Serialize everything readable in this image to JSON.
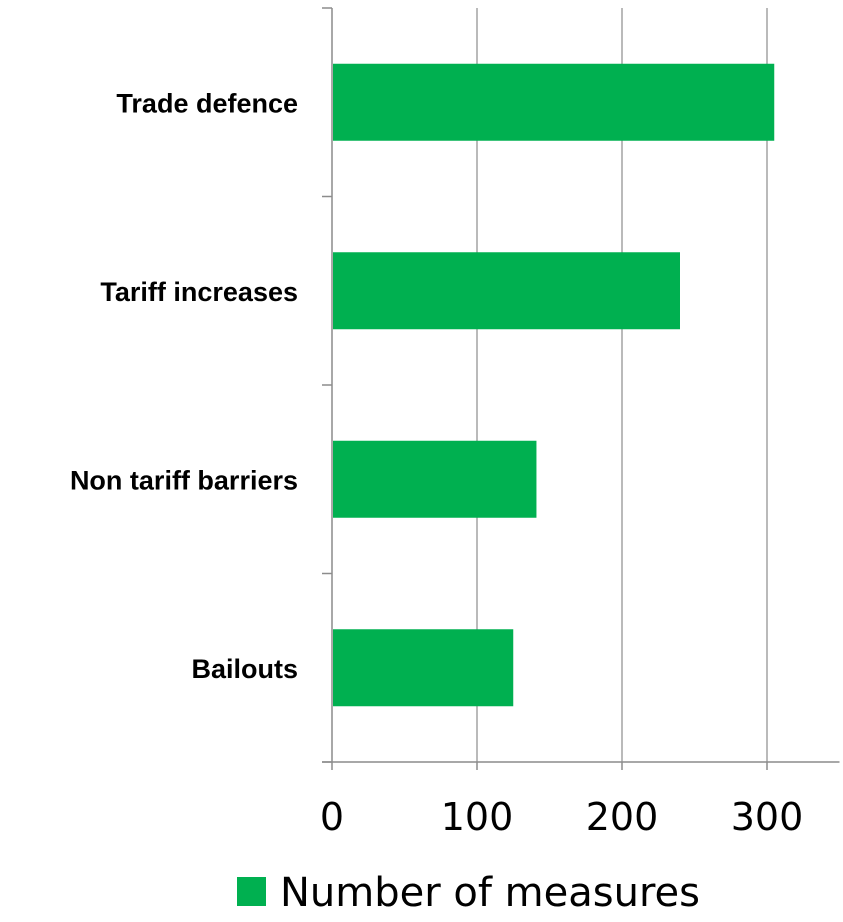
{
  "chart_data": {
    "type": "bar",
    "orientation": "horizontal",
    "categories": [
      "Trade defence",
      "Tariff increases",
      "Non tariff barriers",
      "Bailouts"
    ],
    "series": [
      {
        "name": "Number of measures",
        "values": [
          305,
          240,
          141,
          125
        ],
        "color": "#00b050"
      }
    ],
    "xlim": [
      0,
      350
    ],
    "xticks": [
      "0",
      "100",
      "200",
      "300"
    ],
    "grid": "vertical",
    "legend_position": "bottom"
  }
}
